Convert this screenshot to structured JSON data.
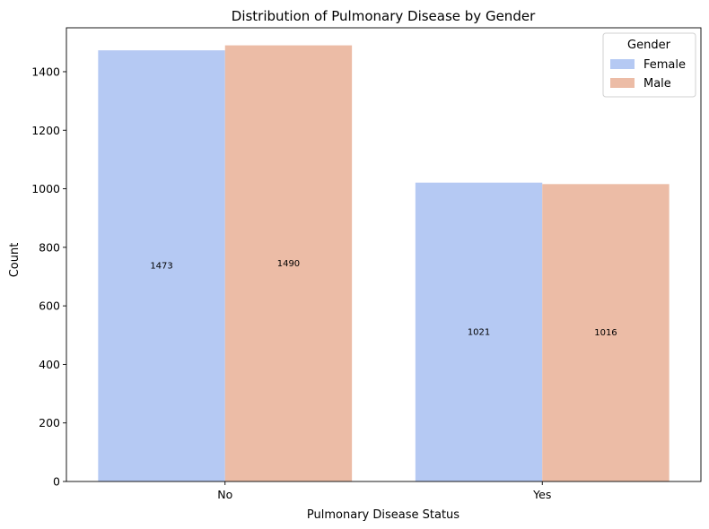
{
  "chart_data": {
    "type": "bar",
    "title": "Distribution of Pulmonary Disease by Gender",
    "xlabel": "Pulmonary Disease Status",
    "ylabel": "Count",
    "categories": [
      "No",
      "Yes"
    ],
    "series": [
      {
        "name": "Female",
        "values": [
          1473,
          1021
        ],
        "color": "#b5c9f3"
      },
      {
        "name": "Male",
        "values": [
          1490,
          1016
        ],
        "color": "#ecbca6"
      }
    ],
    "ylim": [
      0,
      1550
    ],
    "yticks": [
      0,
      200,
      400,
      600,
      800,
      1000,
      1200,
      1400
    ],
    "legend": {
      "title": "Gender",
      "placement": "top-right"
    },
    "grid": false
  }
}
